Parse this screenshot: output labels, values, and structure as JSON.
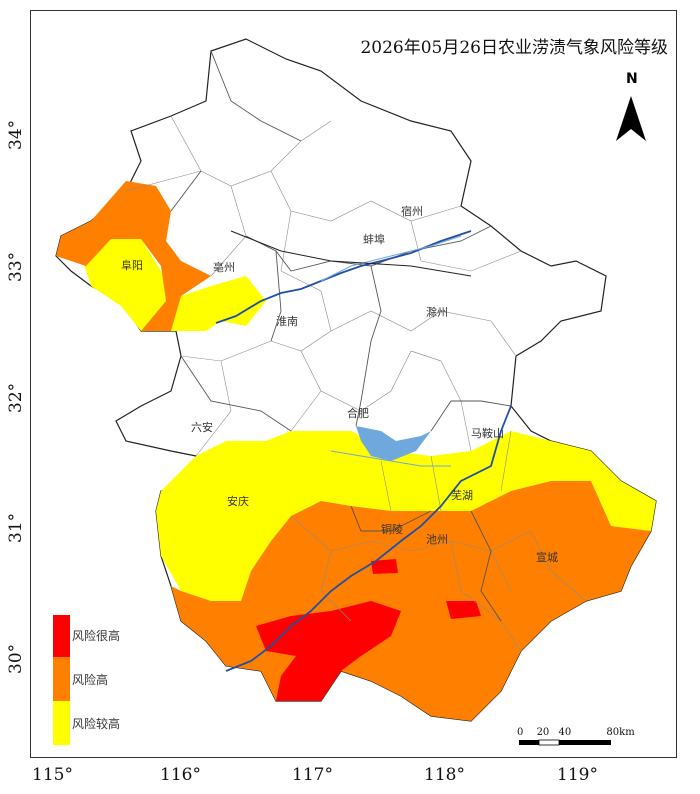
{
  "title": "2026年05月26日农业涝渍气象风险等级",
  "north_label": "N",
  "cities": [
    "宿州",
    "蚌埠",
    "阜阳",
    "亳州",
    "淮南",
    "滁州",
    "合肥",
    "六安",
    "马鞍山",
    "安庆",
    "芜湖",
    "铜陵",
    "池州",
    "宣城"
  ],
  "legend": [
    {
      "label": "风险很高",
      "color": "#ff0000"
    },
    {
      "label": "风险高",
      "color": "#ff7f00"
    },
    {
      "label": "风险较高",
      "color": "#ffff00"
    }
  ],
  "scale": {
    "ticks": [
      "0",
      "20",
      "40",
      "80"
    ],
    "unit": "km"
  },
  "x_axis": [
    "115°",
    "116°",
    "117°",
    "118°",
    "119°"
  ],
  "y_axis": [
    "34°",
    "33°",
    "32°",
    "31°",
    "30°"
  ],
  "colors": {
    "water": "#6fa8dc",
    "river": "#1f4fa8",
    "boundary": "#555555"
  }
}
